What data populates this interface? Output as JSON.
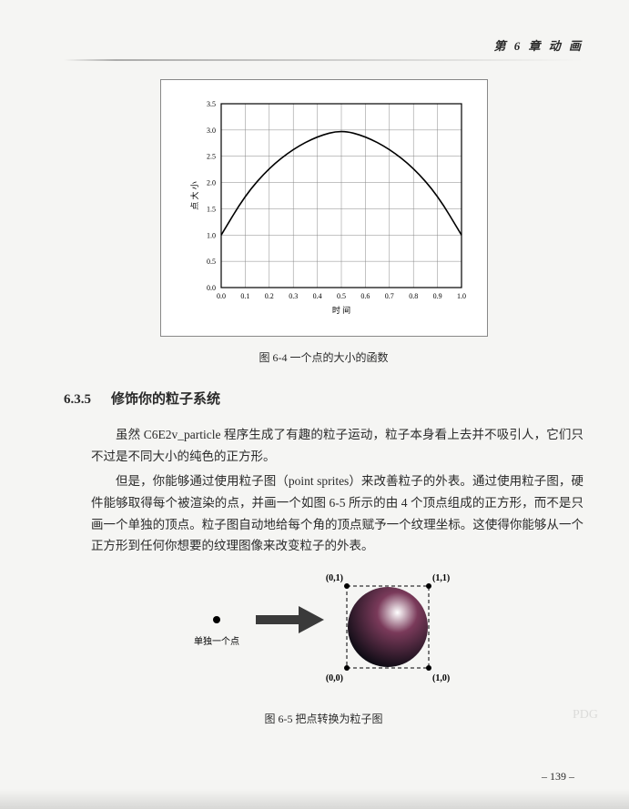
{
  "header": {
    "chapter_label": "第 6 章  动 画"
  },
  "figure_6_4": {
    "type": "line",
    "caption": "图 6-4  一个点的大小的函数",
    "xlabel": "时 间",
    "ylabel": "点 大 小",
    "xlim": [
      0.0,
      1.0
    ],
    "ylim": [
      0.0,
      3.5
    ],
    "xtick_step": 0.1,
    "ytick_step": 0.5,
    "xticks": [
      "0.0",
      "0.1",
      "0.2",
      "0.3",
      "0.4",
      "0.5",
      "0.6",
      "0.7",
      "0.8",
      "0.9",
      "1.0"
    ],
    "yticks": [
      "0.0",
      "0.5",
      "1.0",
      "1.5",
      "2.0",
      "2.5",
      "3.0",
      "3.5"
    ],
    "line_color": "#000000",
    "line_width": 1.6,
    "grid_color": "#888888",
    "background_color": "#ffffff",
    "tick_fontsize": 8,
    "label_fontsize": 9,
    "curve_points": [
      [
        0.0,
        1.0
      ],
      [
        0.1,
        1.76
      ],
      [
        0.2,
        2.28
      ],
      [
        0.3,
        2.64
      ],
      [
        0.4,
        2.88
      ],
      [
        0.5,
        3.0
      ],
      [
        0.6,
        2.88
      ],
      [
        0.7,
        2.64
      ],
      [
        0.8,
        2.28
      ],
      [
        0.9,
        1.76
      ],
      [
        1.0,
        1.0
      ]
    ]
  },
  "section": {
    "number": "6.3.5",
    "title": "修饰你的粒子系统",
    "para1": "虽然 C6E2v_particle 程序生成了有趣的粒子运动，粒子本身看上去并不吸引人，它们只不过是不同大小的纯色的正方形。",
    "para2": "但是，你能够通过使用粒子图（point sprites）来改善粒子的外表。通过使用粒子图，硬件能够取得每个被渲染的点，并画一个如图 6-5 所示的由 4 个顶点组成的正方形，而不是只画一个单独的顶点。粒子图自动地给每个角的顶点赋予一个纹理坐标。这使得你能够从一个正方形到任何你想要的纹理图像来改变粒子的外表。"
  },
  "figure_6_5": {
    "type": "infographic",
    "caption": "图 6-5  把点转换为粒子图",
    "left_label": "单独一个点",
    "corner_labels": {
      "bl": "(0,0)",
      "br": "(1,0)",
      "tl": "(0,1)",
      "tr": "(1,1)"
    },
    "point_color": "#000000",
    "arrow_color": "#3a3a3a",
    "sphere_gradient_center": "#ffffff",
    "sphere_gradient_mid": "#7a3a5a",
    "sphere_gradient_edge": "#0a0a12",
    "square_border_color": "#000000",
    "corner_marker_color": "#000000",
    "label_fontsize": 10
  },
  "page_number": "– 139 –",
  "watermark_text": "PDG"
}
